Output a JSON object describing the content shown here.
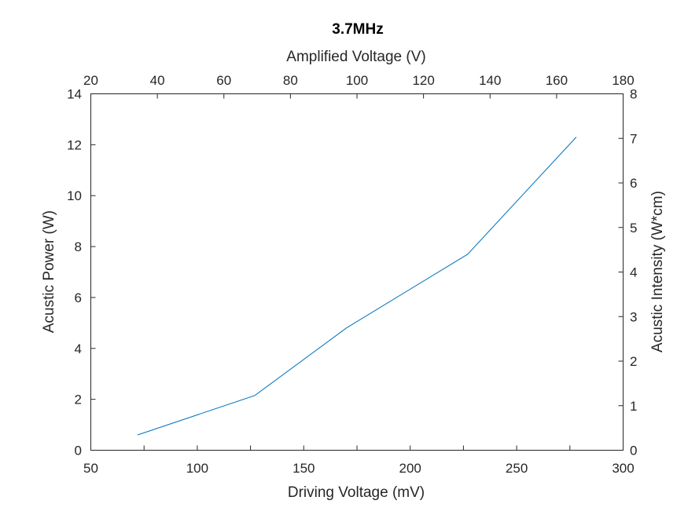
{
  "chart_data": {
    "type": "line",
    "title": "3.7MHz",
    "xlabel": "Driving Voltage (mV)",
    "ylabel": "Acustic Power (W)",
    "x2label": "Amplified Voltage (V)",
    "y2label": "Acustic Intensity (W*cm)",
    "xlim": [
      50,
      300
    ],
    "ylim": [
      0,
      14
    ],
    "x2lim": [
      20,
      180
    ],
    "y2lim": [
      0,
      8
    ],
    "xticks": [
      "50",
      "100",
      "150",
      "200",
      "250",
      "300"
    ],
    "yticks": [
      "0",
      "2",
      "4",
      "6",
      "8",
      "10",
      "12",
      "14"
    ],
    "x2ticks": [
      "20",
      "40",
      "60",
      "80",
      "100",
      "120",
      "140",
      "160",
      "180"
    ],
    "y2ticks": [
      "0",
      "1",
      "2",
      "3",
      "4",
      "5",
      "6",
      "7",
      "8"
    ],
    "grid": false,
    "series": [
      {
        "color": "#0072BD",
        "x": [
          72,
          127,
          170,
          227,
          278
        ],
        "y": [
          0.6,
          2.15,
          4.8,
          7.7,
          12.3
        ]
      }
    ]
  }
}
